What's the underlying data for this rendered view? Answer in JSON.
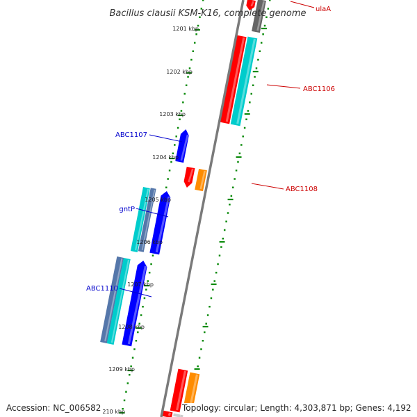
{
  "title": "Bacillus clausii KSM-K16, complete genome",
  "footer": {
    "accession": "Accession: NC_006582",
    "summary": "Topology: circular; Length: 4,303,871 bp; Genes: 4,192"
  },
  "colors": {
    "backbone": "#7a7a7a",
    "tick_outer": "#0a8a0a",
    "tick_inner": "#0a8a0a",
    "label_forward": "#cc0000",
    "label_reverse": "#0000cc"
  },
  "ticks": [
    "1201 kbp",
    "1202 kbp",
    "1203 kbp",
    "1204 kbp",
    "1205 kbp",
    "1206 kbp",
    "1207 kbp",
    "1208 kbp",
    "1209 kbp",
    "210 kbp"
  ],
  "gene_labels": [
    {
      "text": "ulaA",
      "strand": "forward"
    },
    {
      "text": "ABC1106",
      "strand": "forward"
    },
    {
      "text": "ABC1107",
      "strand": "reverse"
    },
    {
      "text": "ABC1108",
      "strand": "forward"
    },
    {
      "text": "gntP",
      "strand": "reverse"
    },
    {
      "text": "ABC1110",
      "strand": "reverse"
    }
  ],
  "features": [
    {
      "strand": "forward",
      "color": "#ff0000",
      "icon": "arrow-up"
    },
    {
      "strand": "forward",
      "color": "#666666",
      "icon": "bar"
    },
    {
      "strand": "forward",
      "color": "#ff0000",
      "icon": "bar"
    },
    {
      "strand": "forward",
      "color": "#00cccc",
      "icon": "bar"
    },
    {
      "strand": "reverse",
      "color": "#0000ff",
      "icon": "arrow-up"
    },
    {
      "strand": "forward",
      "color": "#ff0000",
      "icon": "arrow-down"
    },
    {
      "strand": "forward",
      "color": "#ff8c00",
      "icon": "bar"
    },
    {
      "strand": "reverse",
      "color": "#00cccc",
      "icon": "bar"
    },
    {
      "strand": "reverse",
      "color": "#5577aa",
      "icon": "bar"
    },
    {
      "strand": "reverse",
      "color": "#0000ff",
      "icon": "arrow-up"
    },
    {
      "strand": "reverse",
      "color": "#5577aa",
      "icon": "bar"
    },
    {
      "strand": "reverse",
      "color": "#00cccc",
      "icon": "bar"
    },
    {
      "strand": "reverse",
      "color": "#0000ff",
      "icon": "arrow-up"
    },
    {
      "strand": "forward",
      "color": "#ff0000",
      "icon": "bar"
    },
    {
      "strand": "forward",
      "color": "#ff8c00",
      "icon": "bar"
    },
    {
      "strand": "forward",
      "color": "#ff0000",
      "icon": "bar"
    },
    {
      "strand": "forward",
      "color": "#cccccc",
      "icon": "bar"
    }
  ]
}
